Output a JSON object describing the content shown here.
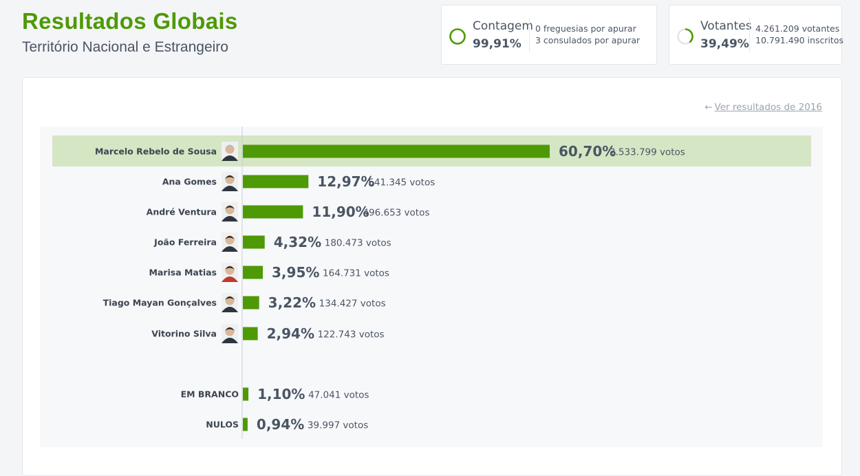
{
  "header": {
    "title": "Resultados Globais",
    "subtitle": "Território Nacional e Estrangeiro"
  },
  "contagem": {
    "label": "Contagem",
    "value": "99,91%",
    "progress": 0.9991,
    "line1": "0 freguesias por apurar",
    "line2": "3 consulados por apurar"
  },
  "votantes": {
    "label": "Votantes",
    "value": "39,49%",
    "progress": 0.3949,
    "line1": "4.261.209 votantes",
    "line2": "10.791.490 inscritos"
  },
  "prev_link": "Ver resultados de 2016",
  "colors": {
    "accent": "#4e9a06",
    "bar": "#4e9a06",
    "highlight": "#d5e6c4"
  },
  "chart_data": {
    "type": "bar",
    "orientation": "horizontal",
    "xlim": [
      0,
      100
    ],
    "categories": [
      "Marcelo Rebelo de Sousa",
      "Ana Gomes",
      "André Ventura",
      "João Ferreira",
      "Marisa Matias",
      "Tiago Mayan Gonçalves",
      "Vitorino Silva",
      "EM BRANCO",
      "NULOS"
    ],
    "values": [
      60.7,
      12.97,
      11.9,
      4.32,
      3.95,
      3.22,
      2.94,
      1.1,
      0.94
    ],
    "pct_labels": [
      "60,70%",
      "12,97%",
      "11,90%",
      "4,32%",
      "3,95%",
      "3,22%",
      "2,94%",
      "1,10%",
      "0,94%"
    ],
    "votes_labels": [
      "2.533.799 votos",
      "541.345 votos",
      "496.653 votos",
      "180.473 votos",
      "164.731 votos",
      "134.427 votos",
      "122.743 votos",
      "47.041 votos",
      "39.997 votos"
    ],
    "has_photo": [
      true,
      true,
      true,
      true,
      true,
      true,
      true,
      false,
      false
    ],
    "highlighted_index": 0
  }
}
